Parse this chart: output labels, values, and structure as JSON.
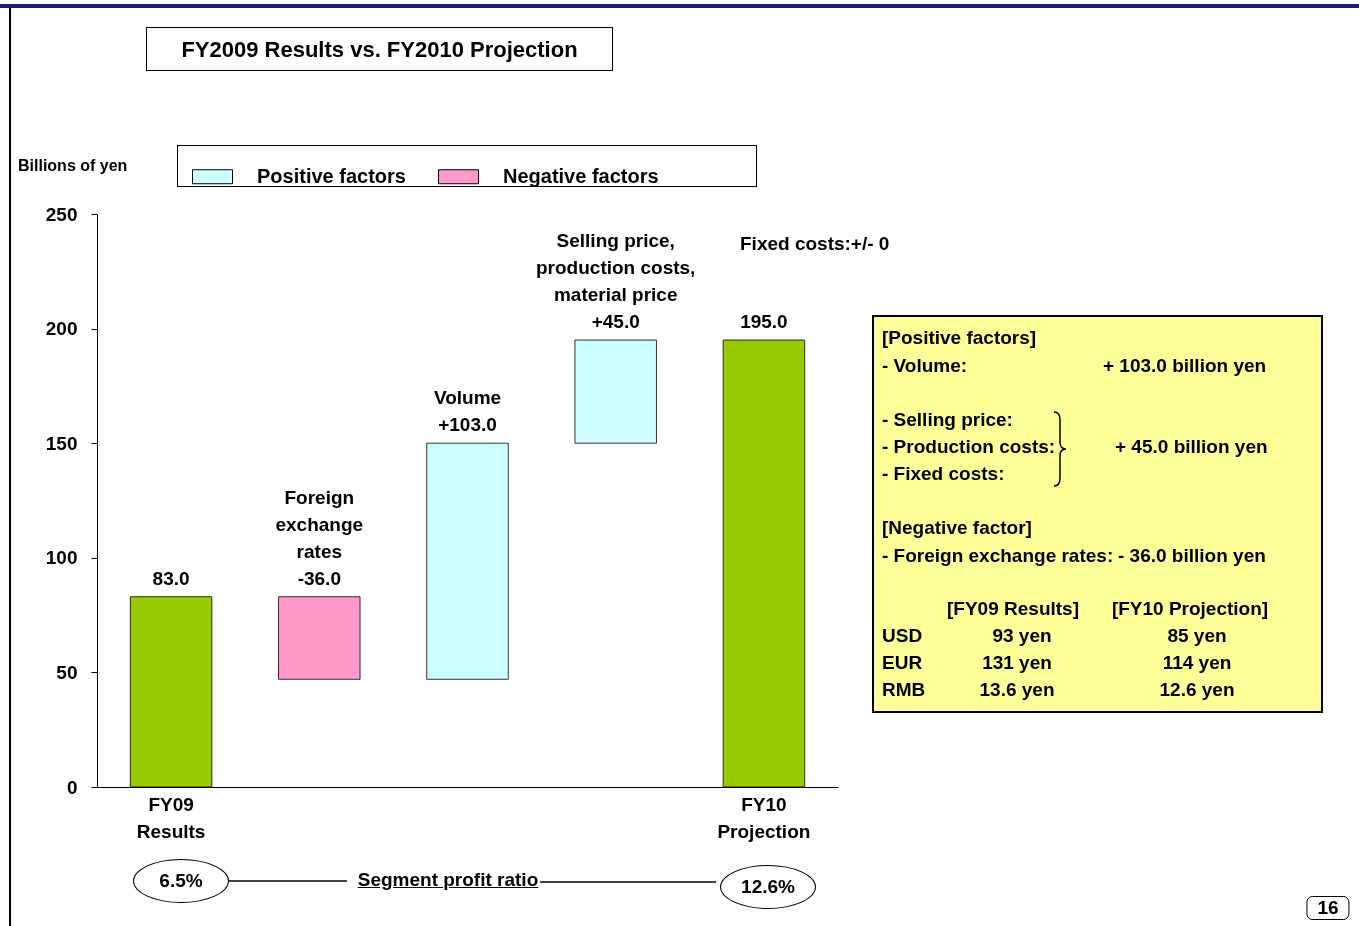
{
  "chart_data": {
    "type": "bar",
    "title": "FY2009 Results   vs.  FY2010 Projection",
    "ylabel": "Billions of yen",
    "categories": [
      "FY09\nResults",
      null,
      null,
      null,
      "FY10\nProjection"
    ],
    "series": [
      {
        "name": "Positive factors",
        "color": "#ccffff",
        "values": [
          null,
          null,
          103,
          45,
          null
        ],
        "base": [
          null,
          null,
          47,
          150,
          null
        ]
      },
      {
        "name": "Negative factors",
        "color": "#ff99cc",
        "values": [
          null,
          -36,
          null,
          null,
          null
        ],
        "base": [
          null,
          83,
          null,
          null,
          null
        ]
      },
      {
        "color": "#99cc00",
        "values": [
          83,
          null,
          null,
          null,
          195
        ],
        "base": [
          0,
          null,
          null,
          null,
          0
        ]
      }
    ],
    "value_labels": [
      "83.0",
      "Foreign\nexchange\nrates\n-36.0",
      "Volume\n+103.0",
      "Selling price,\nproduction costs,\nmaterial price\n+45.0",
      "195.0"
    ],
    "ylim": [
      0,
      250
    ],
    "yticks": [
      0,
      50,
      100,
      150,
      200,
      250
    ],
    "grid": false,
    "legend": "top",
    "annotations": [
      "Fixed costs:+/- 0",
      "Segment profit ratio",
      "6.5%",
      "12.6%",
      "[Positive factors]",
      "- Volume:",
      "+ 103.0 billion yen",
      "- Selling price:",
      "- Production costs:",
      "- Fixed costs:",
      "+ 45.0 billion yen",
      "[Negative factor]",
      "- Foreign exchange rates:",
      "- 36.0 billion yen",
      "[FY09 Results]",
      "[FY10 Projection]",
      "USD",
      "93 yen",
      "85 yen",
      "EUR",
      "131 yen",
      "114 yen",
      "RMB",
      "13.6 yen",
      "12.6 yen",
      "16"
    ]
  }
}
